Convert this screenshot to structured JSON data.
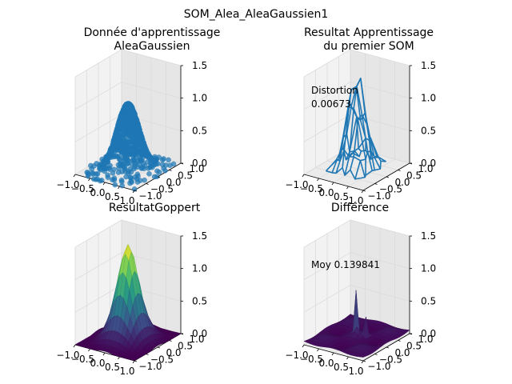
{
  "figure_title": "SOM_Alea_AleaGaussien1",
  "colors": {
    "scatter": "#1f77b4",
    "pane_left": "#f2f2f2",
    "pane_right": "#e6e6e6",
    "pane_floor": "#ebebeb",
    "grid": "#d9d9d9",
    "viridis": [
      "#440154",
      "#3b528b",
      "#21918c",
      "#5ec962",
      "#fde725"
    ]
  },
  "chart_data": [
    {
      "type": "scatter3d",
      "title_lines": [
        "Donnée d'apprentissage",
        "AleaGaussien"
      ],
      "xlim": [
        -1,
        1
      ],
      "ylim": [
        -1,
        1
      ],
      "zlim": [
        0,
        1.5
      ],
      "x_ticks": [
        "−1.0",
        "−0.5",
        "0.0",
        "0.5",
        "1.0"
      ],
      "y_ticks": [
        "−1.0",
        "−0.5",
        "0.0",
        "0.5",
        "1.0"
      ],
      "z_ticks": [
        "0.0",
        "0.5",
        "1.0",
        "1.5"
      ],
      "series": [
        {
          "function": "exp(-(x^2+y^2)/0.18)",
          "samples": 900,
          "x_range": [
            -1,
            1
          ],
          "y_range": [
            -1,
            1
          ]
        }
      ],
      "annotation": ""
    },
    {
      "type": "wireframe3d",
      "title_lines": [
        "Resultat Apprentissage",
        "du premier SOM"
      ],
      "xlim": [
        -1,
        1
      ],
      "ylim": [
        -1,
        1
      ],
      "zlim": [
        0,
        1.5
      ],
      "x_ticks": [
        "−1.0",
        "−0.5",
        "0.0",
        "0.5",
        "1.0"
      ],
      "y_ticks": [
        "−1.0",
        "−0.5",
        "0.0",
        "0.5",
        "1.0"
      ],
      "z_ticks": [
        "0.0",
        "0.5",
        "1.0",
        "1.5"
      ],
      "series": [
        {
          "function": "SOM 8x8 grid fit of exp(-(x^2+y^2)/0.18)",
          "grid": 8,
          "x_range": [
            -0.55,
            0.55
          ],
          "y_range": [
            -0.55,
            0.55
          ]
        }
      ],
      "annotation": "Distortion\n0.00673"
    },
    {
      "type": "surface3d",
      "title_lines": [
        "ResultatGoppert"
      ],
      "xlim": [
        -1,
        1
      ],
      "ylim": [
        -1,
        1
      ],
      "zlim": [
        0,
        1.5
      ],
      "x_ticks": [
        "−1.0",
        "−0.5",
        "0.0",
        "0.5",
        "1.0"
      ],
      "y_ticks": [
        "−1.0",
        "−0.5",
        "0.0",
        "0.5",
        "1.0"
      ],
      "z_ticks": [
        "0.0",
        "0.5",
        "1.0",
        "1.5"
      ],
      "series": [
        {
          "function": "exp(-(x^2+y^2)/0.2) with ripple",
          "colormap": "viridis",
          "grid": 18,
          "x_range": [
            -1,
            1
          ],
          "y_range": [
            -1,
            1
          ]
        }
      ],
      "annotation": ""
    },
    {
      "type": "surface3d",
      "title_lines": [
        "Différence"
      ],
      "xlim": [
        -1,
        1
      ],
      "ylim": [
        -1,
        1
      ],
      "zlim": [
        0,
        1.5
      ],
      "x_ticks": [
        "−1.0",
        "−0.5",
        "0.0",
        "0.5",
        "1.0"
      ],
      "y_ticks": [
        "−1.0",
        "−0.5",
        "0.0",
        "0.5",
        "1.0"
      ],
      "z_ticks": [
        "0.0",
        "0.5",
        "1.0",
        "1.5"
      ],
      "series": [
        {
          "function": "|difference|, mostly near 0 with spikes near origin",
          "colormap": "viridis",
          "grid": 18,
          "x_range": [
            -1,
            1
          ],
          "y_range": [
            -1,
            1
          ]
        }
      ],
      "annotation": "Moy 0.139841"
    }
  ]
}
